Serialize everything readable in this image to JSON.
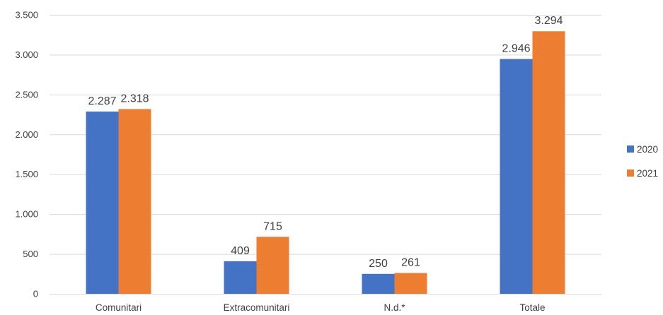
{
  "chart_data": {
    "type": "bar",
    "title": "",
    "xlabel": "",
    "ylabel": "",
    "categories": [
      "Comunitari",
      "Extracomunitari",
      "N.d.*",
      "Totale"
    ],
    "series": [
      {
        "name": "2020",
        "values": [
          2287,
          409,
          250,
          2946
        ],
        "labels": [
          "2.287",
          "409",
          "250",
          "2.946"
        ],
        "color": "#4472C4"
      },
      {
        "name": "2021",
        "values": [
          2318,
          715,
          261,
          3294
        ],
        "labels": [
          "2.318",
          "715",
          "261",
          "3.294"
        ],
        "color": "#ED7D31"
      }
    ],
    "ylim": [
      0,
      3500
    ],
    "yticks": [
      0,
      500,
      1000,
      1500,
      2000,
      2500,
      3000,
      3500
    ],
    "ytick_labels": [
      "0",
      "500",
      "1.000",
      "1.500",
      "2.000",
      "2.500",
      "3.000",
      "3.500"
    ],
    "grid": true,
    "legend_position": "right"
  }
}
